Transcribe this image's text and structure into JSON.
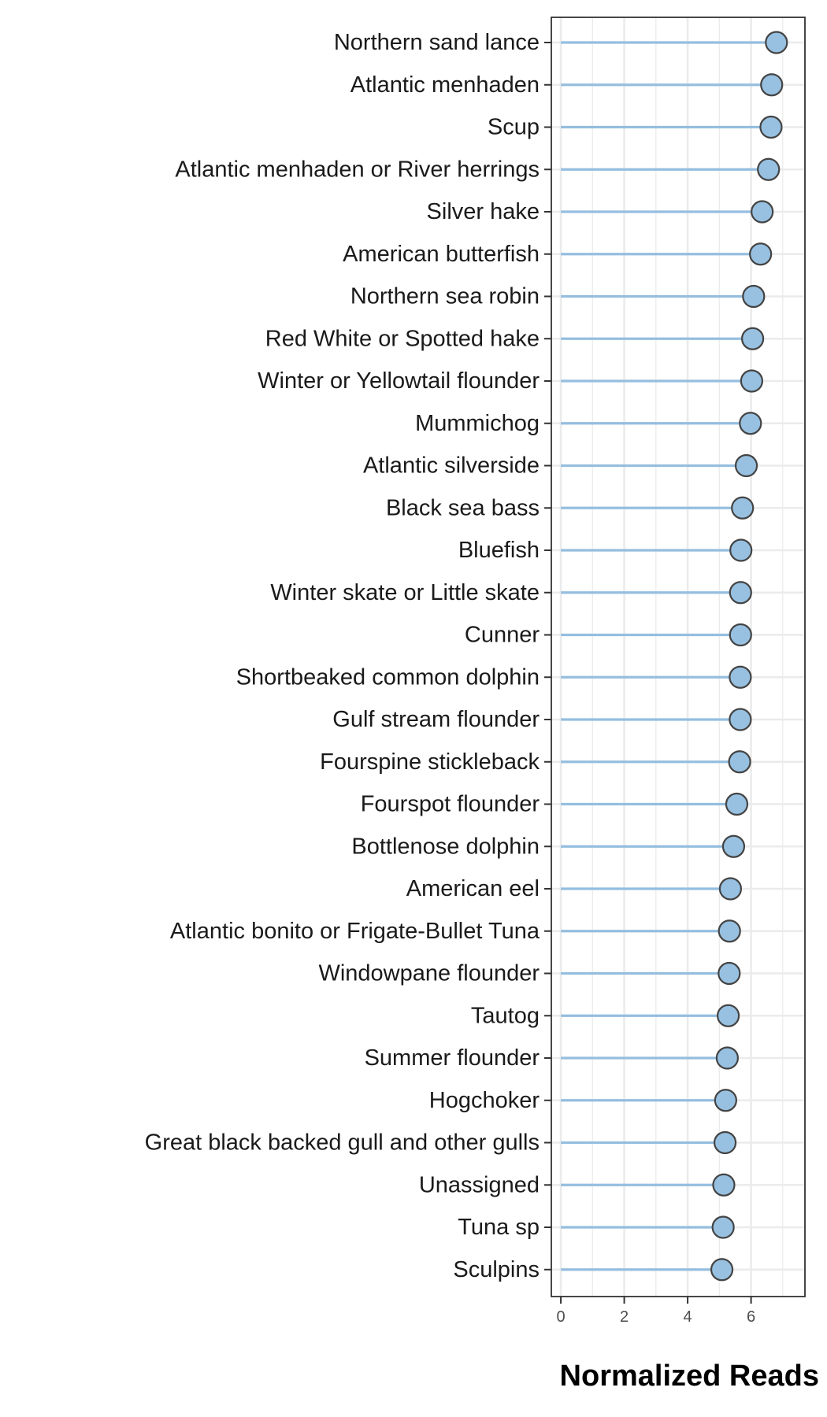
{
  "chart_data": {
    "type": "lollipop",
    "xlabel": "Normalized Reads",
    "ylabel": "",
    "title": "",
    "xlim": [
      -0.3,
      7.7
    ],
    "xticks": [
      0,
      2,
      4,
      6
    ],
    "grid": true,
    "colors": {
      "stem": "#95bedf",
      "point_fill": "#98c1e1",
      "point_stroke": "#444444",
      "grid": "#ebebeb",
      "panel_border": "#333333"
    },
    "categories": [
      "Northern sand lance",
      "Atlantic menhaden",
      "Scup",
      "Atlantic menhaden or River herrings",
      "Silver hake",
      "American butterfish",
      "Northern sea robin",
      "Red White or Spotted hake",
      "Winter or Yellowtail flounder",
      "Mummichog",
      "Atlantic silverside",
      "Black sea bass",
      "Bluefish",
      "Winter skate or Little skate",
      "Cunner",
      "Shortbeaked common dolphin",
      "Gulf stream flounder",
      "Fourspine stickleback",
      "Fourspot flounder",
      "Bottlenose dolphin",
      "American eel",
      "Atlantic bonito or Frigate-Bullet Tuna",
      "Windowpane flounder",
      "Tautog",
      "Summer flounder",
      "Hogchoker",
      "Great black backed gull and other gulls",
      "Unassigned",
      "Tuna sp",
      "Sculpins"
    ],
    "values": [
      6.8,
      6.65,
      6.63,
      6.55,
      6.35,
      6.3,
      6.08,
      6.05,
      6.02,
      5.98,
      5.85,
      5.73,
      5.68,
      5.67,
      5.67,
      5.66,
      5.66,
      5.64,
      5.55,
      5.45,
      5.35,
      5.32,
      5.31,
      5.28,
      5.25,
      5.2,
      5.18,
      5.14,
      5.12,
      5.08
    ]
  }
}
